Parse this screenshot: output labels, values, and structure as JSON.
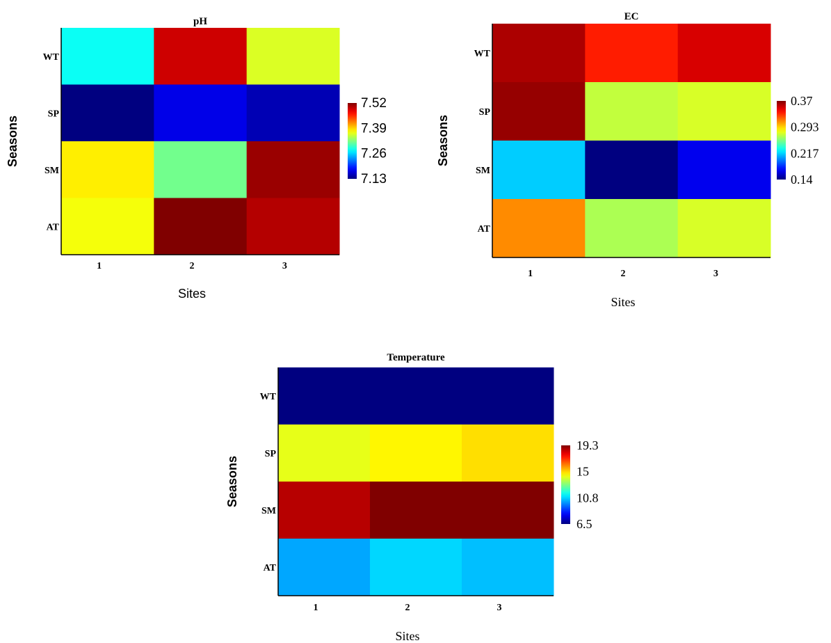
{
  "chart_data": [
    {
      "type": "heatmap",
      "title": "pH",
      "xlabel": "Sites",
      "ylabel": "Seasons",
      "x_categories": [
        "1",
        "2",
        "3"
      ],
      "y_categories": [
        "WT",
        "SP",
        "SM",
        "AT"
      ],
      "values": [
        [
          7.28,
          7.49,
          7.36
        ],
        [
          7.13,
          7.17,
          7.15
        ],
        [
          7.38,
          7.32,
          7.51
        ],
        [
          7.37,
          7.52,
          7.5
        ]
      ],
      "colorbar": {
        "min": 7.13,
        "max": 7.52,
        "ticks": [
          "7.52",
          "7.39",
          "7.26",
          "7.13"
        ]
      },
      "colormap": "jet"
    },
    {
      "type": "heatmap",
      "title": "EC",
      "xlabel": "Sites",
      "ylabel": "Seasons",
      "x_categories": [
        "1",
        "2",
        "3"
      ],
      "y_categories": [
        "WT",
        "SP",
        "SM",
        "AT"
      ],
      "values": [
        [
          0.36,
          0.335,
          0.35
        ],
        [
          0.365,
          0.27,
          0.275
        ],
        [
          0.215,
          0.14,
          0.165
        ],
        [
          0.31,
          0.265,
          0.275
        ]
      ],
      "colorbar": {
        "min": 0.14,
        "max": 0.37,
        "ticks": [
          "0.37",
          "0.293",
          "0.217",
          "0.14"
        ]
      },
      "colormap": "jet"
    },
    {
      "type": "heatmap",
      "title": "Temperature",
      "xlabel": "Sites",
      "ylabel": "Seasons",
      "x_categories": [
        "1",
        "2",
        "3"
      ],
      "y_categories": [
        "WT",
        "SP",
        "SM",
        "AT"
      ],
      "values": [
        [
          6.5,
          6.5,
          6.5
        ],
        [
          14.2,
          14.6,
          14.9
        ],
        [
          18.6,
          19.3,
          19.3
        ],
        [
          10.2,
          10.8,
          10.5
        ]
      ],
      "colorbar": {
        "min": 6.5,
        "max": 19.3,
        "ticks": [
          "19.3",
          "15",
          "10.8",
          "6.5"
        ]
      },
      "colormap": "jet"
    }
  ]
}
